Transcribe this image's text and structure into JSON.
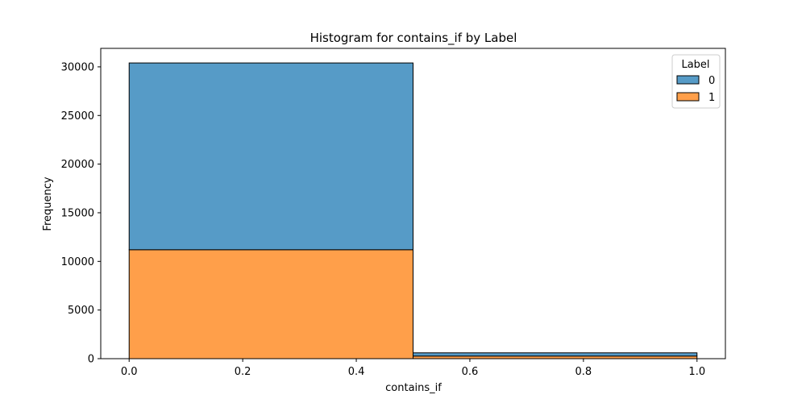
{
  "chart_data": {
    "type": "bar",
    "title": "Histogram for contains_if by Label",
    "xlabel": "contains_if",
    "ylabel": "Frequency",
    "xlim": [
      -0.05,
      1.05
    ],
    "ylim": [
      0,
      31900
    ],
    "xticks": [
      0.0,
      0.2,
      0.4,
      0.6,
      0.8,
      1.0
    ],
    "xtick_labels": [
      "0.0",
      "0.2",
      "0.4",
      "0.6",
      "0.8",
      "1.0"
    ],
    "yticks": [
      0,
      5000,
      10000,
      15000,
      20000,
      25000,
      30000
    ],
    "ytick_labels": [
      "0",
      "5000",
      "10000",
      "15000",
      "20000",
      "25000",
      "30000"
    ],
    "stacked": true,
    "bins": [
      [
        0.0,
        0.5
      ],
      [
        0.5,
        1.0
      ]
    ],
    "series": [
      {
        "name": "1",
        "color": "#ff9f4a",
        "values": [
          11200,
          270
        ]
      },
      {
        "name": "0",
        "color": "#569bc7",
        "values": [
          19200,
          330
        ]
      }
    ],
    "legend": {
      "title": "Label",
      "placement": "top-right",
      "entries": [
        {
          "label": "0",
          "color": "#569bc7"
        },
        {
          "label": "1",
          "color": "#ff9f4a"
        }
      ]
    },
    "grid": false
  }
}
